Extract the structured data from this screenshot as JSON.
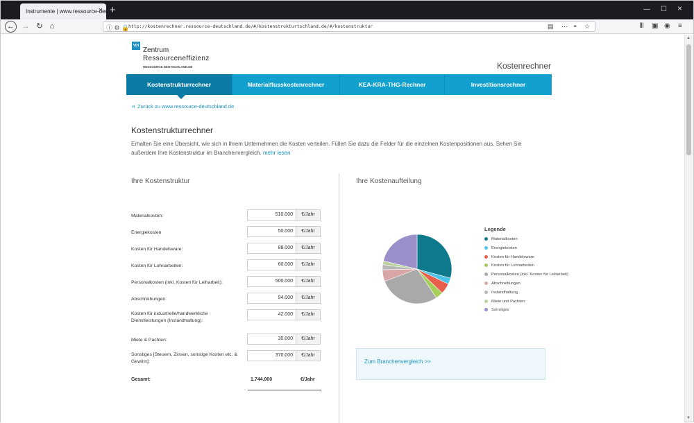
{
  "browser": {
    "tab_title": "Instrumente | www.ressource-deuts",
    "url": "http://kostenrechner.ressource-deutschland.de/#/kostenstrukturtschland.de/#/kostenstruktur"
  },
  "logo": {
    "badge": "VDI",
    "line1": "Zentrum",
    "line2": "Ressourceneffizienz",
    "line3": "RESSOURCE DEUTSCHLAND.DE"
  },
  "header": {
    "app_title": "Kostenrechner"
  },
  "nav": {
    "items": [
      {
        "label": "Kostenstrukturrechner"
      },
      {
        "label": "Materialflusskostenrechner"
      },
      {
        "label": "KEA-KRA-THG-Rechner"
      },
      {
        "label": "Investitionsrechner"
      }
    ]
  },
  "backlink": {
    "label": "Zurück zu www.ressource-deutschland.de"
  },
  "main": {
    "title": "Kostenstrukturrechner",
    "intro": "Erhalten Sie eine Übersicht, wie sich in Ihrem Unternehmen die Kosten verteilen. Füllen Sie dazu die Felder für die einzelnen Kostenpositionen aus. Sehen Sie außerdem Ihre Kostenstruktur im Branchenvergleich.",
    "more_label": "mehr lesen"
  },
  "form": {
    "heading": "Ihre Kostenstruktur",
    "unit": "€/Jahr",
    "rows": [
      {
        "label": "Materialkosten:",
        "value": "510.000"
      },
      {
        "label": "Energiekosten",
        "value": "50.000"
      },
      {
        "label": "Kosten für Handelsware:",
        "value": "88.000"
      },
      {
        "label": "Kosten für Lohnarbeiten:",
        "value": "60.000"
      },
      {
        "label": "Personalkosten (inkl. Kosten für Leiharbeit):",
        "value": "500.000"
      },
      {
        "label": "Abschreibungen:",
        "value": "94.000"
      },
      {
        "label": "Kosten für industrielle/handwerkliche Dienstleistungen (Instandhaltung):",
        "value": "42.000"
      },
      {
        "label": "Miete & Pachten:",
        "value": "30.000"
      },
      {
        "label": "Sonstiges [Steuern, Zinsen, sonstige Kosten etc. & Gewinn]:",
        "value": "370.000"
      }
    ],
    "total_label": "Gesamt:",
    "total_value": "1.744.000",
    "total_unit": "€/Jahr"
  },
  "chart_panel": {
    "heading": "Ihre Kostenaufteilung",
    "legend_title": "Legende",
    "branch_link": "Zum Branchenvergleich >>"
  },
  "chart_data": {
    "type": "pie",
    "categories": [
      "Materialkosten",
      "Energiekosten",
      "Kosten für Handelsware",
      "Kosten für Lohnarbeiten",
      "Personalkosten (inkl. Kosten für Leiharbeit)",
      "Abschreibungen",
      "Instandhaltung",
      "Miete und Pachten",
      "Sonstiges"
    ],
    "values": [
      510000,
      50000,
      88000,
      60000,
      500000,
      94000,
      42000,
      30000,
      370000
    ],
    "colors": [
      "#0f7a8c",
      "#4cc3e8",
      "#e8604c",
      "#a6cf5a",
      "#a9a9a9",
      "#d9a6a8",
      "#b8b8b8",
      "#b9d39a",
      "#9b8fc9"
    ],
    "legend_position": "right"
  }
}
